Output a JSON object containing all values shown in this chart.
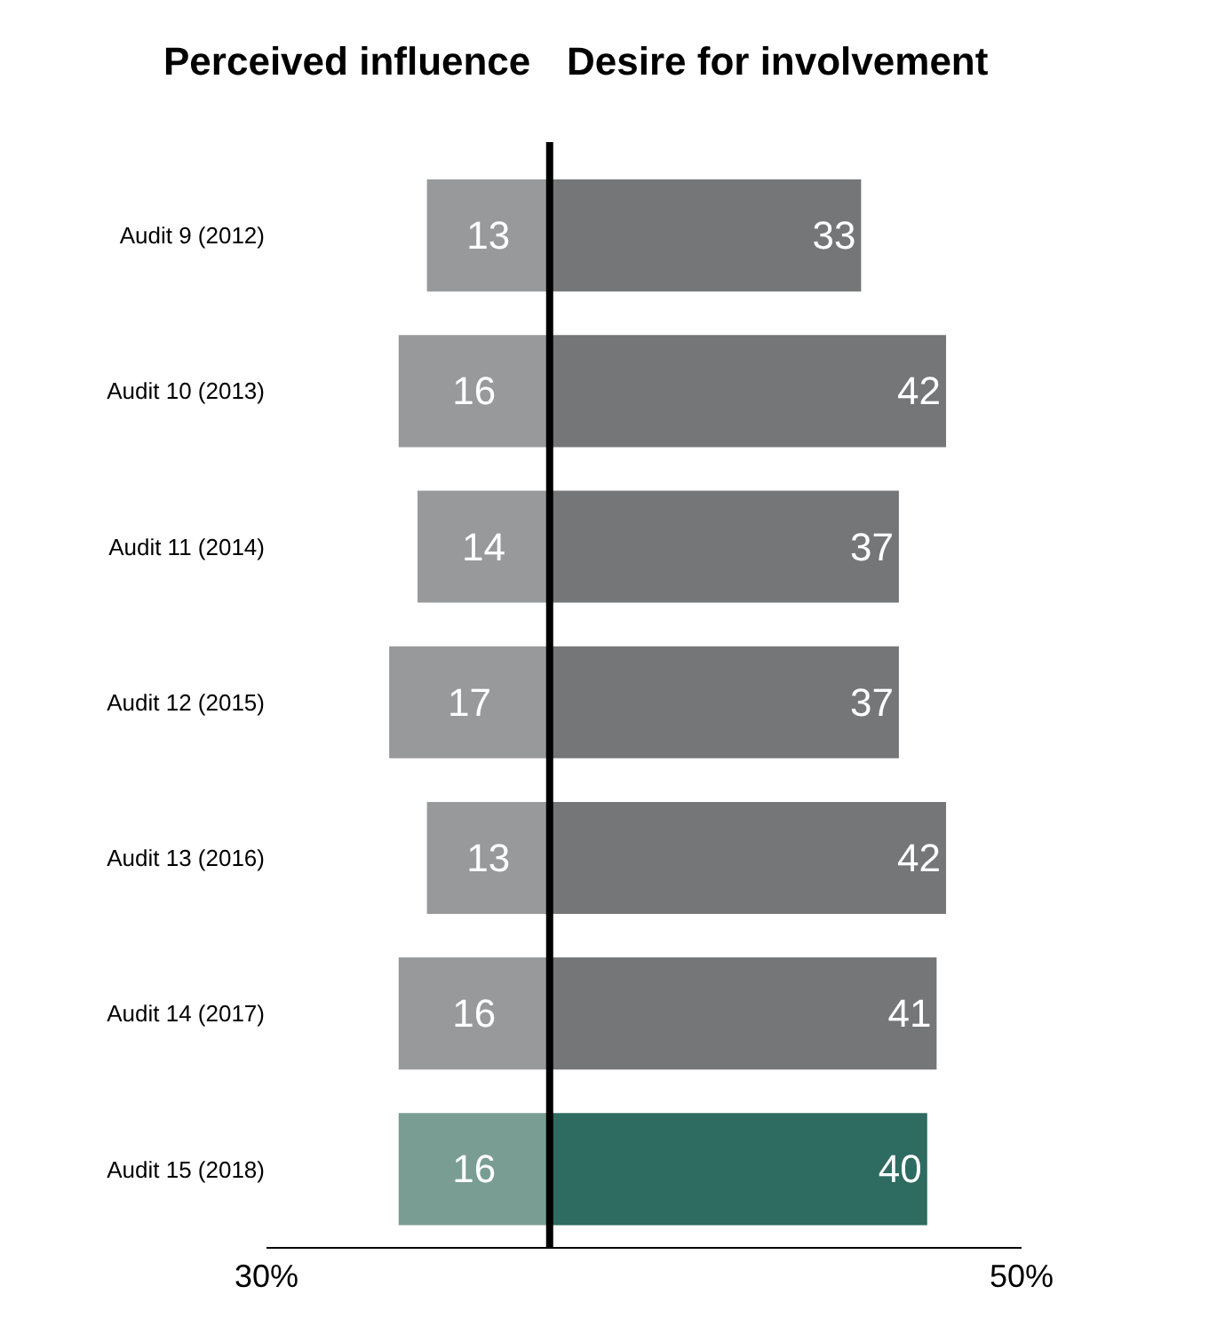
{
  "chart_data": {
    "type": "bar",
    "orientation": "horizontal",
    "categories": [
      "Audit 9 (2012)",
      "Audit 10 (2013)",
      "Audit 11 (2014)",
      "Audit 12 (2015)",
      "Audit 13 (2016)",
      "Audit 14 (2017)",
      "Audit 15 (2018)"
    ],
    "series": [
      {
        "name": "Perceived influence",
        "values": [
          13,
          16,
          14,
          17,
          13,
          16,
          16
        ],
        "base": [
          -13,
          -16,
          -14,
          -17,
          -13,
          -16,
          -16
        ],
        "value_labels": [
          "13",
          "16",
          "14",
          "17",
          "13",
          "16",
          "16"
        ],
        "colors": [
          "#98999b",
          "#98999b",
          "#98999b",
          "#98999b",
          "#98999b",
          "#98999b",
          "#7a9d93"
        ]
      },
      {
        "name": "Desire for involvement",
        "values": [
          33,
          42,
          37,
          37,
          42,
          41,
          40
        ],
        "value_labels": [
          "33",
          "42",
          "37",
          "37",
          "42",
          "41",
          "40"
        ],
        "colors": [
          "#757678",
          "#757678",
          "#757678",
          "#757678",
          "#757678",
          "#757678",
          "#2e6b60"
        ]
      }
    ],
    "xlim": [
      -30,
      50
    ],
    "xticks": [
      {
        "value": -30,
        "label": "30%"
      },
      {
        "value": 50,
        "label": "50%"
      }
    ],
    "ref_lines": [
      {
        "axis": "x",
        "value": 0,
        "color": "#000000"
      }
    ],
    "legend": false
  }
}
